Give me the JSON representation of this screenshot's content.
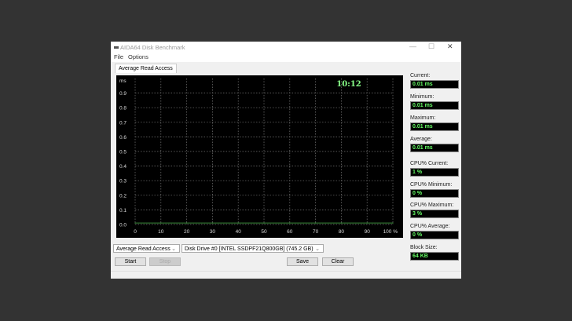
{
  "window": {
    "title": "AIDA64 Disk Benchmark",
    "controls": [
      "—",
      "☐",
      "✕"
    ]
  },
  "menu": [
    "File",
    "Options"
  ],
  "tab": "Average Read Access",
  "chart_data": {
    "type": "line",
    "ylabel": "ms",
    "ylim": [
      0,
      1
    ],
    "yticks": [
      "0.0",
      "0.1",
      "0.2",
      "0.3",
      "0.4",
      "0.5",
      "0.6",
      "0.7",
      "0.8",
      "0.9"
    ],
    "xlim": [
      0,
      100
    ],
    "xticks": [
      "0",
      "10",
      "20",
      "30",
      "40",
      "50",
      "60",
      "70",
      "80",
      "90",
      "100 %"
    ],
    "grid": true,
    "annotation": "10:12",
    "series": [
      {
        "x": [
          0,
          10,
          20,
          30,
          40,
          50,
          60,
          70,
          80,
          90,
          100
        ],
        "y": [
          0.01,
          0.01,
          0.01,
          0.01,
          0.01,
          0.01,
          0.01,
          0.01,
          0.01,
          0.01,
          0.01
        ],
        "color": "#3a8a3a"
      }
    ]
  },
  "stats": [
    {
      "label": "Current:",
      "value": "0.01 ms"
    },
    {
      "label": "Minimum:",
      "value": "0.01 ms"
    },
    {
      "label": "Maximum:",
      "value": "0.01 ms"
    },
    {
      "label": "Average:",
      "value": "0.01 ms"
    },
    {
      "label": "CPU% Current:",
      "value": "1 %"
    },
    {
      "label": "CPU% Minimum:",
      "value": "0 %"
    },
    {
      "label": "CPU% Maximum:",
      "value": "3 %"
    },
    {
      "label": "CPU% Average:",
      "value": "0 %"
    },
    {
      "label": "Block Size:",
      "value": "64 KB"
    }
  ],
  "controls": {
    "mode": "Average Read Access",
    "drive": "Disk Drive #0  [INTEL SSDPF21Q800GB]  (745.2 GB)",
    "start": "Start",
    "stop": "Stop",
    "save": "Save",
    "clear": "Clear"
  }
}
